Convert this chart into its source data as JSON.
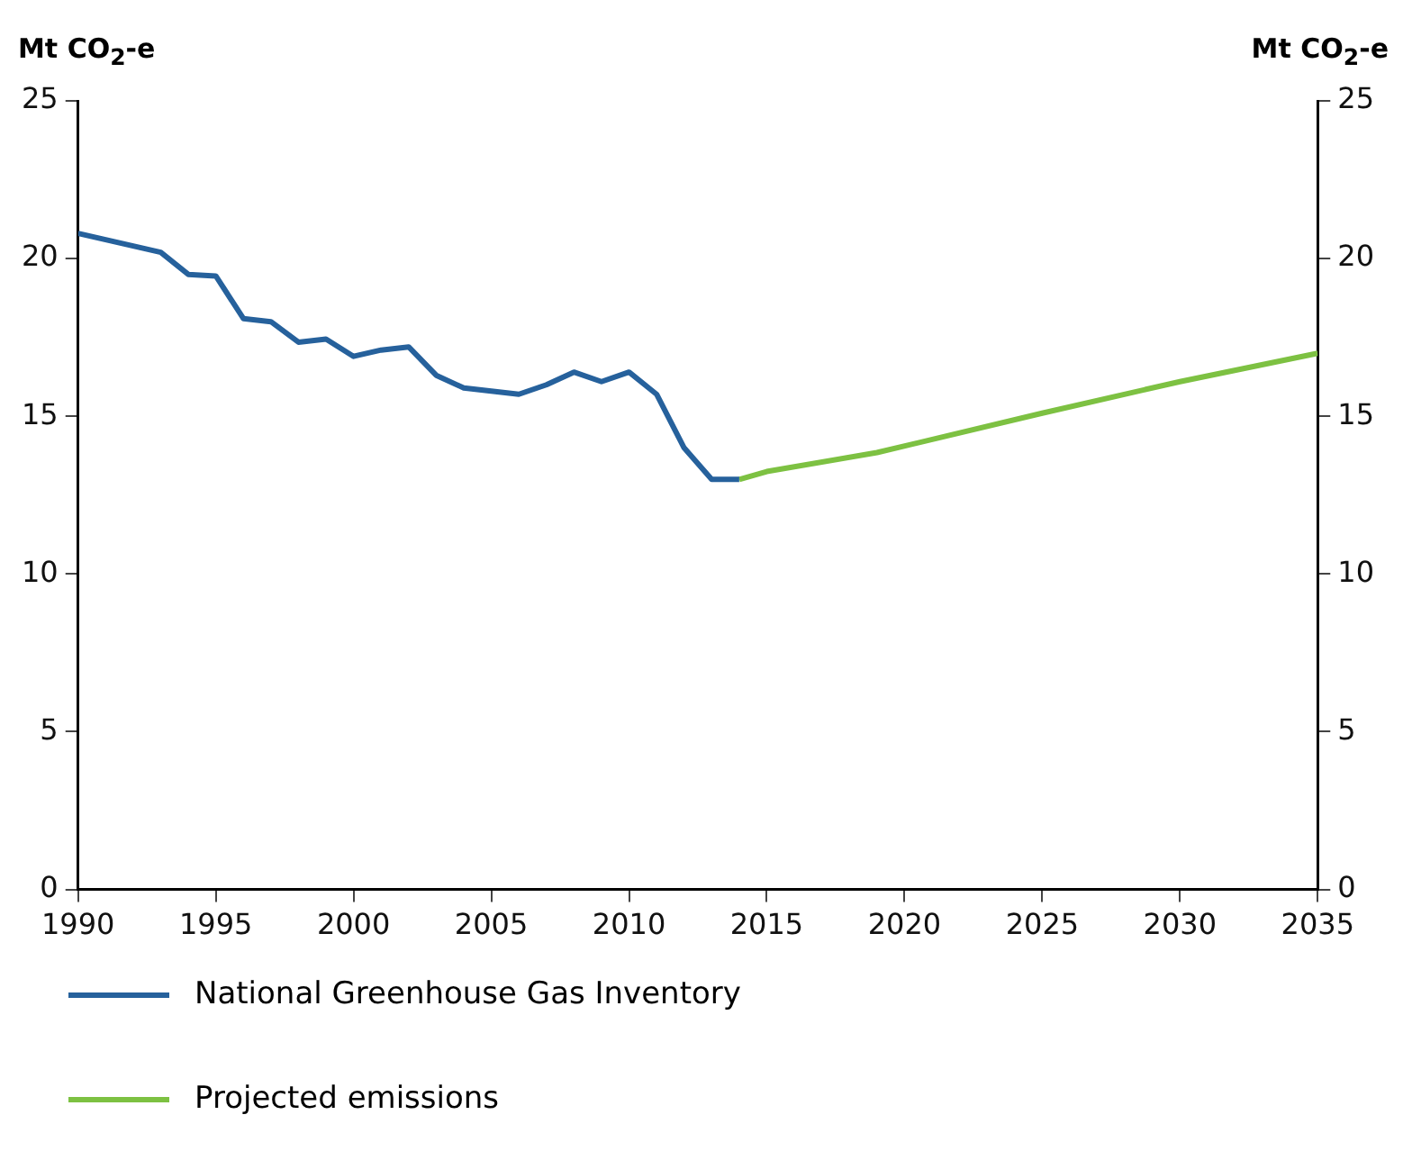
{
  "chart_data": {
    "type": "line",
    "ylabel": "Mt CO$_{2}$-e",
    "y2label": "Mt CO$_{2}$-e",
    "xlim": [
      1990,
      2035
    ],
    "xticks": [
      1990,
      1995,
      2000,
      2005,
      2010,
      2015,
      2020,
      2025,
      2030,
      2035
    ],
    "ylim": [
      0,
      25
    ],
    "yticks": [
      0,
      5,
      10,
      15,
      20,
      25
    ],
    "y2lim": [
      0,
      25
    ],
    "y2ticks": [
      0,
      5,
      10,
      15,
      20,
      25
    ],
    "grid": false,
    "legend": "bottom",
    "marker": "none",
    "line_style": "solid",
    "series": [
      {
        "name": "National Greenhouse Gas Inventory",
        "color": "#26619c",
        "x": [
          1990,
          1991,
          1992,
          1993,
          1994,
          1995,
          1996,
          1997,
          1998,
          1999,
          2000,
          2001,
          2002,
          2003,
          2004,
          2005,
          2006,
          2007,
          2008,
          2009,
          2010,
          2011,
          2012,
          2013,
          2014
        ],
        "values": [
          20.8,
          20.6,
          20.4,
          20.2,
          19.5,
          19.45,
          18.1,
          18.0,
          17.35,
          17.45,
          16.9,
          17.1,
          17.2,
          16.3,
          15.9,
          15.8,
          15.7,
          16.0,
          16.4,
          16.1,
          16.4,
          15.7,
          14.0,
          13.0,
          13.0
        ]
      },
      {
        "name": "Projected emissions",
        "color": "#7dc142",
        "x": [
          2014,
          2015,
          2019,
          2025,
          2030,
          2035
        ],
        "values": [
          13.0,
          13.25,
          13.85,
          15.1,
          16.1,
          17.0
        ]
      }
    ]
  }
}
